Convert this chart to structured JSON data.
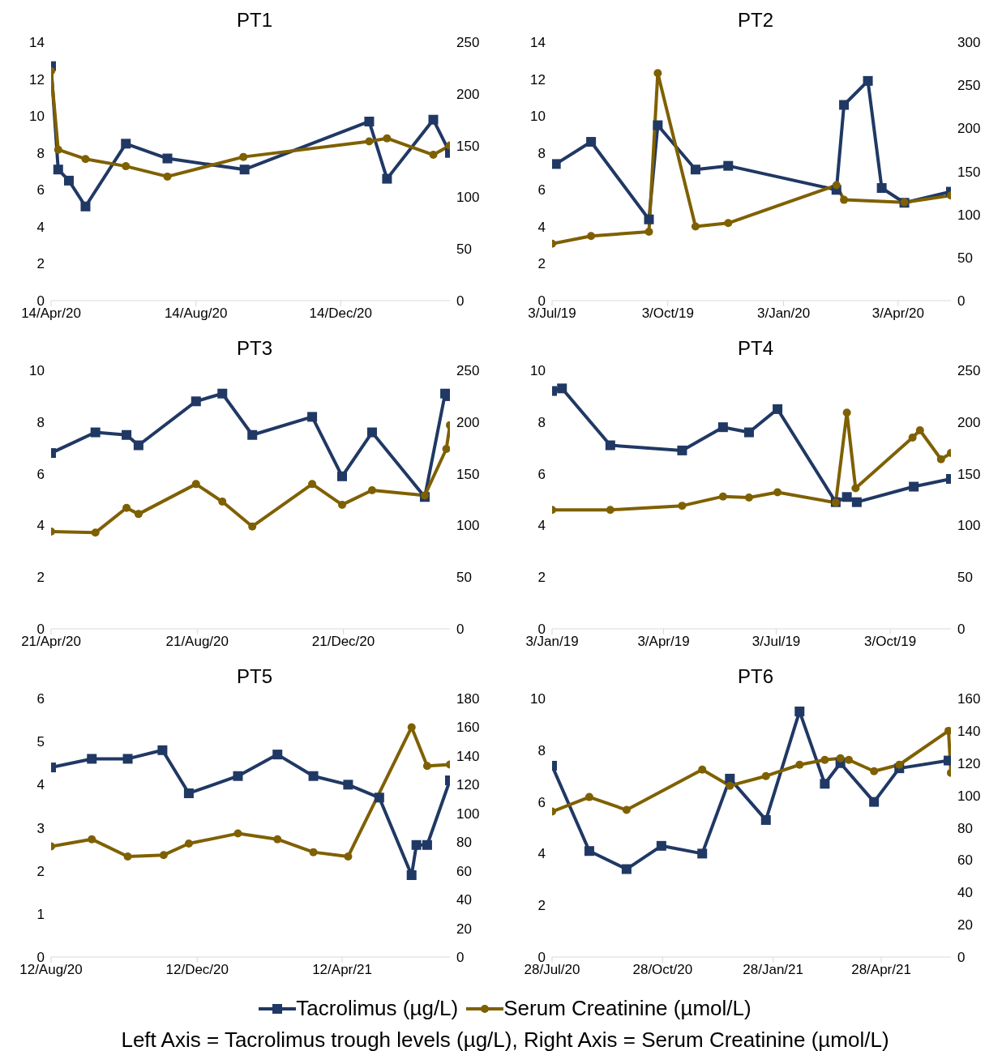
{
  "chart_data": [
    {
      "type": "line",
      "title": "PT1",
      "legend": "bottom",
      "annotations": [
        "Left Axis = Tacrolimus trough levels (µg/L), Right Axis = Serum Creatinine (µmol/L)"
      ],
      "xlim": [
        "2020-04-14",
        "2021-03-16"
      ],
      "xticks": [
        {
          "value": "2020-04-14",
          "label": "14/Apr/20"
        },
        {
          "value": "2020-08-14",
          "label": "14/Aug/20"
        },
        {
          "value": "2020-12-14",
          "label": "14/Dec/20"
        }
      ],
      "ylim": [
        0,
        14
      ],
      "yticks": [
        0,
        2,
        4,
        6,
        8,
        10,
        12,
        14
      ],
      "y2lim": [
        0,
        250
      ],
      "y2ticks": [
        0,
        50,
        100,
        150,
        200,
        250
      ],
      "series": [
        {
          "name": "Tacrolimus (µg/L)",
          "color": "#203864",
          "marker": "square",
          "x": [
            "2020-04-14",
            "2020-04-20",
            "2020-04-29",
            "2020-05-13",
            "2020-06-16",
            "2020-07-21",
            "2020-09-24",
            "2021-01-07",
            "2021-01-22",
            "2021-03-02",
            "2021-03-16"
          ],
          "values": [
            12.7,
            7.1,
            6.5,
            5.1,
            8.5,
            7.7,
            7.1,
            9.7,
            6.6,
            9.8,
            8.0
          ]
        },
        {
          "name": "Serum Creatinine (µmol/L)",
          "color": "#7f6000",
          "marker": "circle",
          "axis": "y2",
          "x": [
            "2020-04-14",
            "2020-04-20",
            "2020-05-13",
            "2020-06-16",
            "2020-07-21",
            "2020-09-23",
            "2021-01-07",
            "2021-01-22",
            "2021-03-02",
            "2021-03-16"
          ],
          "values": [
            222,
            146,
            137,
            130,
            120,
            139,
            154,
            157,
            141,
            150
          ]
        }
      ]
    },
    {
      "type": "line",
      "title": "PT2",
      "xlim": [
        "2019-07-03",
        "2020-05-15"
      ],
      "xticks": [
        {
          "value": "2019-07-03",
          "label": "3/Jul/19"
        },
        {
          "value": "2019-10-03",
          "label": "3/Oct/19"
        },
        {
          "value": "2020-01-03",
          "label": "3/Jan/20"
        },
        {
          "value": "2020-04-03",
          "label": "3/Apr/20"
        }
      ],
      "ylim": [
        0,
        14
      ],
      "yticks": [
        0,
        2,
        4,
        6,
        8,
        10,
        12,
        14
      ],
      "y2lim": [
        0,
        300
      ],
      "y2ticks": [
        0,
        50,
        100,
        150,
        200,
        250,
        300
      ],
      "series": [
        {
          "color": "#203864",
          "marker": "square",
          "x": [
            "2019-07-06",
            "2019-08-03",
            "2019-09-18",
            "2019-09-25",
            "2019-10-25",
            "2019-11-20",
            "2020-02-14",
            "2020-02-20",
            "2020-03-10",
            "2020-03-21",
            "2020-04-08",
            "2020-05-15"
          ],
          "values": [
            7.4,
            8.6,
            4.4,
            9.5,
            7.1,
            7.3,
            6.0,
            10.6,
            11.9,
            6.1,
            5.3,
            5.9
          ]
        },
        {
          "color": "#7f6000",
          "marker": "circle",
          "axis": "y2",
          "x": [
            "2019-07-03",
            "2019-08-03",
            "2019-09-18",
            "2019-09-25",
            "2019-10-25",
            "2019-11-20",
            "2020-02-14",
            "2020-02-20",
            "2020-04-08",
            "2020-05-15"
          ],
          "values": [
            66,
            75,
            80,
            264,
            86,
            90,
            134,
            117,
            114,
            122
          ]
        }
      ]
    },
    {
      "type": "line",
      "title": "PT3",
      "xlim": [
        "2020-04-21",
        "2021-03-20"
      ],
      "xticks": [
        {
          "value": "2020-04-21",
          "label": "21/Apr/20"
        },
        {
          "value": "2020-08-21",
          "label": "21/Aug/20"
        },
        {
          "value": "2020-12-21",
          "label": "21/Dec/20"
        }
      ],
      "ylim": [
        0,
        10
      ],
      "yticks": [
        0,
        2,
        4,
        6,
        8,
        10
      ],
      "y2lim": [
        0,
        250
      ],
      "y2ticks": [
        0,
        50,
        100,
        150,
        200,
        250
      ],
      "series": [
        {
          "color": "#203864",
          "marker": "square",
          "x": [
            "2020-04-21",
            "2020-05-28",
            "2020-06-23",
            "2020-07-03",
            "2020-08-20",
            "2020-09-11",
            "2020-10-06",
            "2020-11-25",
            "2020-12-20",
            "2021-01-14",
            "2021-02-27",
            "2021-03-16",
            "2021-03-20"
          ],
          "values": [
            6.8,
            7.6,
            7.5,
            7.1,
            8.8,
            9.1,
            7.5,
            8.2,
            5.9,
            7.6,
            5.1,
            9.1,
            9.0
          ]
        },
        {
          "color": "#7f6000",
          "marker": "circle",
          "axis": "y2",
          "x": [
            "2020-04-21",
            "2020-05-28",
            "2020-06-23",
            "2020-07-03",
            "2020-08-20",
            "2020-09-11",
            "2020-10-06",
            "2020-11-25",
            "2020-12-20",
            "2021-01-14",
            "2021-02-27",
            "2021-03-17",
            "2021-03-20"
          ],
          "values": [
            94,
            93,
            117,
            111,
            140,
            123,
            99,
            140,
            120,
            134,
            129,
            174,
            197
          ]
        }
      ]
    },
    {
      "type": "line",
      "title": "PT4",
      "xlim": [
        "2019-01-03",
        "2019-11-21"
      ],
      "xticks": [
        {
          "value": "2019-01-03",
          "label": "3/Jan/19"
        },
        {
          "value": "2019-04-03",
          "label": "3/Apr/19"
        },
        {
          "value": "2019-07-03",
          "label": "3/Jul/19"
        },
        {
          "value": "2019-10-03",
          "label": "3/Oct/19"
        }
      ],
      "ylim": [
        0,
        10
      ],
      "yticks": [
        0,
        2,
        4,
        6,
        8,
        10
      ],
      "y2lim": [
        0,
        250
      ],
      "y2ticks": [
        0,
        50,
        100,
        150,
        200,
        250
      ],
      "series": [
        {
          "color": "#203864",
          "marker": "square",
          "x": [
            "2019-01-03",
            "2019-01-11",
            "2019-02-19",
            "2019-04-18",
            "2019-05-21",
            "2019-06-11",
            "2019-07-04",
            "2019-08-20",
            "2019-08-29",
            "2019-09-06",
            "2019-10-22",
            "2019-11-21"
          ],
          "values": [
            9.2,
            9.3,
            7.1,
            6.9,
            7.8,
            7.6,
            8.5,
            4.9,
            5.1,
            4.9,
            5.5,
            5.8
          ]
        },
        {
          "color": "#7f6000",
          "marker": "circle",
          "axis": "y2",
          "x": [
            "2019-01-03",
            "2019-02-19",
            "2019-04-18",
            "2019-05-21",
            "2019-06-11",
            "2019-07-04",
            "2019-08-20",
            "2019-08-29",
            "2019-09-05",
            "2019-10-21",
            "2019-10-27",
            "2019-11-13",
            "2019-11-21"
          ],
          "values": [
            115,
            115,
            119,
            128,
            127,
            132,
            122,
            209,
            136,
            185,
            192,
            164,
            170
          ]
        }
      ]
    },
    {
      "type": "line",
      "title": "PT5",
      "xlim": [
        "2020-08-12",
        "2021-07-11"
      ],
      "xticks": [
        {
          "value": "2020-08-12",
          "label": "12/Aug/20"
        },
        {
          "value": "2020-12-12",
          "label": "12/Dec/20"
        },
        {
          "value": "2021-04-12",
          "label": "12/Apr/21"
        }
      ],
      "ylim": [
        0,
        6
      ],
      "yticks": [
        0,
        1,
        2,
        3,
        4,
        5,
        6
      ],
      "y2lim": [
        0,
        180
      ],
      "y2ticks": [
        0,
        20,
        40,
        60,
        80,
        100,
        120,
        140,
        160,
        180
      ],
      "series": [
        {
          "color": "#203864",
          "marker": "square",
          "x": [
            "2020-08-12",
            "2020-09-15",
            "2020-10-15",
            "2020-11-13",
            "2020-12-05",
            "2021-01-15",
            "2021-02-17",
            "2021-03-19",
            "2021-04-17",
            "2021-05-13",
            "2021-06-09",
            "2021-06-13",
            "2021-06-22",
            "2021-07-11"
          ],
          "values": [
            4.4,
            4.6,
            4.6,
            4.8,
            3.8,
            4.2,
            4.7,
            4.2,
            4.0,
            3.7,
            1.9,
            2.6,
            2.6,
            4.1
          ]
        },
        {
          "color": "#7f6000",
          "marker": "circle",
          "axis": "y2",
          "x": [
            "2020-08-12",
            "2020-09-15",
            "2020-10-15",
            "2020-11-14",
            "2020-12-05",
            "2021-01-15",
            "2021-02-17",
            "2021-03-19",
            "2021-04-17",
            "2021-06-09",
            "2021-06-22",
            "2021-07-11"
          ],
          "values": [
            77,
            82,
            70,
            71,
            79,
            86,
            82,
            73,
            70,
            160,
            133,
            134
          ]
        }
      ]
    },
    {
      "type": "line",
      "title": "PT6",
      "xlim": [
        "2020-07-28",
        "2021-06-25"
      ],
      "xticks": [
        {
          "value": "2020-07-28",
          "label": "28/Jul/20"
        },
        {
          "value": "2020-10-28",
          "label": "28/Oct/20"
        },
        {
          "value": "2021-01-28",
          "label": "28/Jan/21"
        },
        {
          "value": "2021-04-28",
          "label": "28/Apr/21"
        }
      ],
      "ylim": [
        0,
        10
      ],
      "yticks": [
        0,
        2,
        4,
        6,
        8,
        10
      ],
      "y2lim": [
        0,
        160
      ],
      "y2ticks": [
        0,
        20,
        40,
        60,
        80,
        100,
        120,
        140,
        160
      ],
      "series": [
        {
          "color": "#203864",
          "marker": "square",
          "x": [
            "2020-07-28",
            "2020-08-28",
            "2020-09-28",
            "2020-10-27",
            "2020-11-30",
            "2020-12-23",
            "2021-01-22",
            "2021-02-19",
            "2021-03-12",
            "2021-03-25",
            "2021-04-22",
            "2021-05-13",
            "2021-06-23"
          ],
          "values": [
            7.4,
            4.1,
            3.4,
            4.3,
            4.0,
            6.9,
            5.3,
            9.5,
            6.7,
            7.5,
            6.0,
            7.3,
            7.6
          ]
        },
        {
          "color": "#7f6000",
          "marker": "circle",
          "axis": "y2",
          "x": [
            "2020-07-28",
            "2020-08-28",
            "2020-09-28",
            "2020-11-30",
            "2020-12-23",
            "2021-01-22",
            "2021-02-19",
            "2021-03-12",
            "2021-03-25",
            "2021-04-01",
            "2021-04-22",
            "2021-05-13",
            "2021-06-23",
            "2021-06-25"
          ],
          "values": [
            90,
            99,
            91,
            116,
            106,
            112,
            119,
            122,
            123,
            122,
            115,
            119,
            140,
            114
          ]
        }
      ]
    }
  ]
}
